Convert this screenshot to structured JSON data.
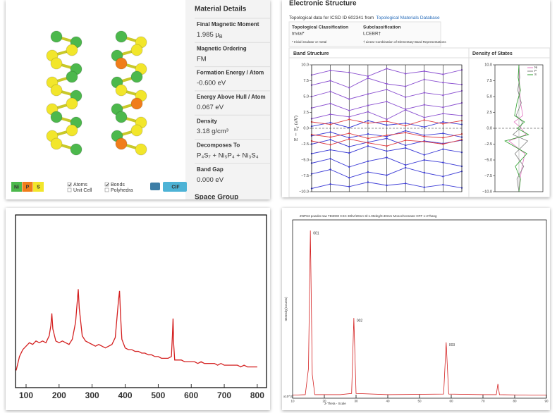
{
  "viewer": {
    "legend": [
      "Ni",
      "P",
      "S"
    ],
    "legend_colors": [
      "#4cb84c",
      "#f07d1a",
      "#f2e62b"
    ],
    "checkboxes": [
      "Atoms",
      "Unit Cell",
      "Bonds",
      "Polyhedra"
    ],
    "button": "CIF"
  },
  "material_details": {
    "title": "Material Details",
    "items": [
      {
        "label": "Final Magnetic Moment",
        "value": "1.985 μ",
        "value_sub": "B"
      },
      {
        "label": "Magnetic Ordering",
        "value": "FM"
      },
      {
        "label": "Formation Energy / Atom",
        "value": "-0.600 eV"
      },
      {
        "label": "Energy Above Hull / Atom",
        "value": "0.067 eV"
      },
      {
        "label": "Density",
        "value": "3.18 g/cm³"
      },
      {
        "label": "Decomposes To",
        "value": "P₄S₇ + Ni₅P₄ + Ni₃S₄"
      },
      {
        "label": "Band Gap",
        "value": "0.000 eV"
      }
    ],
    "next_heading": "Space Group"
  },
  "electronic_structure": {
    "title": "Electronic Structure",
    "source": "Topological data for ICSD ID 602341 from",
    "link": "Topological Materials Database",
    "headers": [
      "Topological Classification",
      "Subclassification"
    ],
    "cells": [
      "trivial*",
      "LCEBR†"
    ],
    "notes": [
      "* trivial insulator or metal",
      "† Linear Combination of Elementary Band Representations"
    ]
  },
  "chart_data": [
    {
      "type": "bands",
      "title": "Band Structure",
      "ylabel": "E − E",
      "ylabel_sub": "f",
      "ylabel_unit": " (eV)",
      "categories": [
        null,
        null,
        null,
        null,
        null,
        null,
        null,
        null,
        null
      ],
      "ylim": [
        -10,
        10
      ],
      "yticks": [
        {
          "value": -10,
          "label": "−10.0"
        },
        {
          "value": -7.5,
          "label": "−7.5"
        },
        {
          "value": -5,
          "label": "−5.0"
        },
        {
          "value": -2.5,
          "label": "−2.5"
        },
        {
          "value": 0,
          "label": "0.0"
        },
        2.5,
        {
          "value": 5,
          "label": "5.0"
        },
        7.5,
        {
          "value": 10,
          "label": "10.0"
        }
      ],
      "series": [
        {
          "color": "#3b3bd6",
          "values": [
            -9.5,
            -8.8,
            -9.2,
            -8.5,
            -9.0,
            -8.7,
            -9.3,
            -8.9,
            -9.4
          ]
        },
        {
          "color": "#3b3bd6",
          "values": [
            -7.2,
            -6.5,
            -7.8,
            -6.9,
            -7.4,
            -6.2,
            -7.0,
            -7.6,
            -6.8
          ]
        },
        {
          "color": "#3b3bd6",
          "values": [
            -5.5,
            -4.8,
            -6.1,
            -5.2,
            -4.6,
            -5.8,
            -5.0,
            -5.4,
            -6.0
          ]
        },
        {
          "color": "#3b3bd6",
          "values": [
            -4.0,
            -3.4,
            -3.9,
            -2.8,
            -3.6,
            -3.1,
            -4.2,
            -3.3,
            -3.8
          ]
        },
        {
          "color": "#3b3bd6",
          "values": [
            -2.5,
            -1.8,
            -2.9,
            -2.2,
            -1.6,
            -2.7,
            -2.0,
            -2.4,
            -1.9
          ]
        },
        {
          "color": "#3b3bd6",
          "values": [
            -1.2,
            -0.6,
            -1.5,
            -0.9,
            -1.3,
            -0.4,
            -1.1,
            -0.8,
            -1.4
          ]
        },
        {
          "color": "#3b3bd6",
          "values": [
            0.3,
            0.9,
            0.1,
            1.2,
            0.5,
            0.8,
            0.2,
            1.0,
            0.6
          ]
        },
        {
          "color": "#8a4fd0",
          "values": [
            1.5,
            2.2,
            1.8,
            2.6,
            1.4,
            2.9,
            1.7,
            2.3,
            2.0
          ]
        },
        {
          "color": "#8a4fd0",
          "values": [
            3.2,
            3.9,
            2.8,
            3.6,
            4.2,
            3.0,
            3.7,
            3.3,
            4.0
          ]
        },
        {
          "color": "#8a4fd0",
          "values": [
            5.0,
            5.8,
            4.6,
            5.4,
            6.1,
            4.9,
            5.6,
            5.2,
            5.9
          ]
        },
        {
          "color": "#8a4fd0",
          "values": [
            6.8,
            7.5,
            6.4,
            7.9,
            7.0,
            6.6,
            7.7,
            7.2,
            6.9
          ]
        },
        {
          "color": "#8a4fd0",
          "values": [
            8.4,
            9.1,
            8.8,
            8.2,
            9.4,
            8.6,
            9.0,
            8.5,
            9.2
          ]
        },
        {
          "color": "#e0393e",
          "values": [
            -1.0,
            -1.4,
            -0.8,
            -1.6,
            -1.1,
            -0.7,
            -1.3,
            -1.5,
            -0.9
          ]
        },
        {
          "color": "#e0393e",
          "values": [
            -2.0,
            -2.6,
            -1.7,
            -2.3,
            -2.8,
            -1.9,
            -2.1,
            -2.5,
            -1.8
          ]
        },
        {
          "color": "#e0393e",
          "values": [
            1.0,
            0.6,
            1.4,
            0.8,
            1.1,
            0.4,
            1.3,
            0.7,
            1.2
          ]
        }
      ]
    },
    {
      "type": "dos",
      "title": "Density of States",
      "ylim": [
        -10,
        10
      ],
      "yticks": [
        {
          "value": -10,
          "label": "−10.0"
        },
        {
          "value": -7.5,
          "label": "−7.5"
        },
        {
          "value": -5,
          "label": "−5.0"
        },
        {
          "value": -2.5,
          "label": "−2.5"
        },
        {
          "value": 0,
          "label": "0.0"
        },
        2.5,
        {
          "value": 5,
          "label": "5.0"
        },
        7.5,
        {
          "value": 10,
          "label": "10.0"
        }
      ],
      "xlim": [
        -6,
        6
      ],
      "energies": [
        -10,
        -8,
        -6,
        -4,
        -2,
        -1,
        0,
        1,
        2,
        4,
        6,
        8,
        10
      ],
      "series": [
        {
          "name": "Ni",
          "color": "#e377c2",
          "values": [
            0,
            0.3,
            0.8,
            1.5,
            -2.5,
            1.8,
            0.6,
            -1.2,
            1.0,
            0.4,
            0.2,
            0.1,
            0
          ]
        },
        {
          "name": "P",
          "color": "#7f7f7f",
          "values": [
            0,
            -0.5,
            1.2,
            -1.0,
            2.2,
            -1.5,
            0.3,
            0.9,
            -0.7,
            0.6,
            -0.3,
            0.2,
            0
          ]
        },
        {
          "name": "S",
          "color": "#2ca02c",
          "values": [
            0,
            0.4,
            -0.9,
            2.0,
            -3.5,
            2.4,
            -0.4,
            1.4,
            -1.1,
            -0.5,
            0.4,
            -0.2,
            0
          ]
        }
      ]
    },
    {
      "type": "line",
      "color": "#d42020",
      "xlim": [
        68,
        828
      ],
      "ylim": [
        0,
        100
      ],
      "xticks": [
        100,
        200,
        300,
        400,
        500,
        600,
        700,
        800
      ],
      "x": [
        70,
        80,
        90,
        100,
        110,
        120,
        130,
        140,
        150,
        160,
        170,
        175,
        178,
        181,
        190,
        200,
        210,
        220,
        230,
        240,
        250,
        255,
        258,
        261,
        270,
        280,
        290,
        300,
        310,
        320,
        330,
        340,
        350,
        360,
        370,
        375,
        380,
        383,
        386,
        390,
        400,
        410,
        420,
        430,
        440,
        450,
        460,
        470,
        480,
        490,
        500,
        510,
        520,
        530,
        540,
        543,
        545,
        547,
        550,
        560,
        570,
        580,
        590,
        600,
        610,
        620,
        630,
        640,
        650,
        660,
        670,
        680,
        690,
        700,
        710,
        720,
        730,
        740,
        750,
        760,
        770,
        780,
        790,
        800
      ],
      "values": [
        10,
        18,
        22,
        24,
        26,
        25,
        27,
        26,
        27,
        26,
        30,
        36,
        43,
        34,
        27,
        26,
        27,
        26,
        25,
        28,
        38,
        50,
        57,
        46,
        30,
        27,
        26,
        25,
        24,
        25,
        24,
        23,
        24,
        25,
        29,
        40,
        51,
        56,
        42,
        28,
        23,
        22,
        22,
        21,
        21,
        20,
        20,
        19,
        19,
        18,
        18,
        17,
        17,
        17,
        18,
        30,
        40,
        25,
        16,
        16,
        16,
        15,
        15,
        15,
        15,
        14,
        15,
        14,
        14,
        14,
        14,
        13,
        14,
        13,
        13,
        13,
        13,
        13,
        12,
        13,
        12,
        12,
        12,
        12
      ]
    },
    {
      "type": "line",
      "color": "#d42020",
      "title": "ZNPS3 powder.raw TD3000 CSC 30kV/20mA Sl:1.00deg/0.30mm Monochromator OFF 1-27hang",
      "ylabel": "Intensity(Counts)",
      "yunit": "x10^3",
      "xlabel": "2-Theta - Scale",
      "annotations": [
        "001",
        "002",
        "003"
      ],
      "xlim": [
        10,
        90
      ],
      "ylim": [
        0,
        30
      ],
      "xticks": [
        10,
        20,
        30,
        40,
        50,
        60,
        70,
        80,
        90
      ],
      "x": [
        10,
        14,
        15,
        15.6,
        16.2,
        17,
        25,
        28.6,
        29.3,
        30,
        40,
        57.6,
        58.4,
        59.2,
        70,
        74.2,
        74.7,
        75.2,
        85,
        90
      ],
      "values": [
        0.5,
        0.6,
        5,
        28.2,
        4,
        0.6,
        0.6,
        0.8,
        13.5,
        0.8,
        0.6,
        0.7,
        9.4,
        0.7,
        0.6,
        0.6,
        2.4,
        0.6,
        0.5,
        0.5
      ]
    }
  ]
}
